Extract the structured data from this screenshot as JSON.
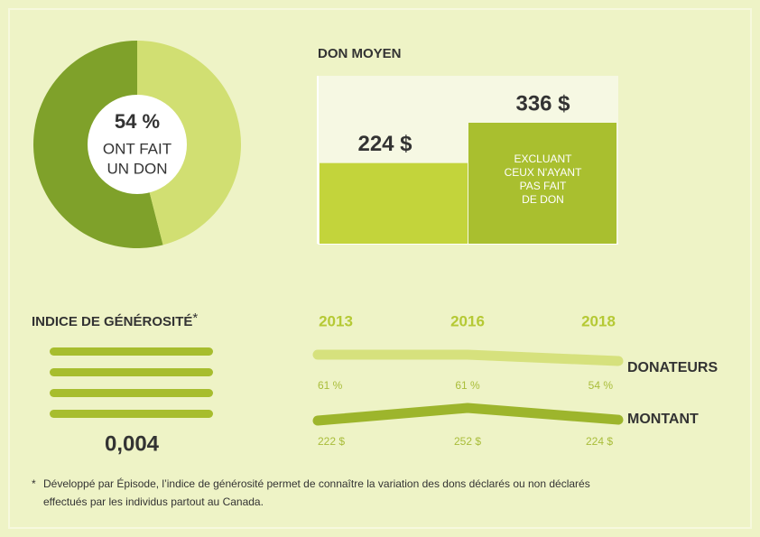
{
  "chart_data": [
    {
      "type": "pie",
      "values": [
        54,
        46
      ],
      "value_labels": [
        "54 %",
        null
      ],
      "colors": [
        "#7fa12a",
        "#d1df72"
      ],
      "label_lines": [
        "ONT FAIT",
        "UN DON"
      ]
    },
    {
      "type": "bar",
      "title": "DON MOYEN",
      "values": [
        224,
        336
      ],
      "value_labels": [
        "224 $",
        "336 $"
      ],
      "colors": [
        "#c3d43b",
        "#a9bf2f"
      ],
      "annotation_lines": [
        "EXCLUANT",
        "CEUX N'AYANT",
        "PAS FAIT",
        "DE DON"
      ]
    },
    {
      "type": "line",
      "categories": [
        "2013",
        "2016",
        "2018"
      ],
      "series": [
        {
          "name": "DONATEURS",
          "color": "#d6e17d",
          "values": [
            61,
            61,
            54
          ],
          "value_labels": [
            "61 %",
            "61 %",
            "54 %"
          ]
        },
        {
          "name": "MONTANT",
          "color": "#9db52c",
          "values": [
            222,
            252,
            224
          ],
          "value_labels": [
            "222 $",
            "252 $",
            "224 $"
          ]
        }
      ]
    }
  ],
  "index": {
    "title": "INDICE DE GÉNÉROSITÉ",
    "marker": "*",
    "value": "0,004"
  },
  "footnote": {
    "marker": "*",
    "lines": [
      "Développé par Épisode, l’indice de générosité permet de connaître la variation des dons déclarés ou non déclarés",
      "effectués par les individus partout au Canada."
    ]
  }
}
